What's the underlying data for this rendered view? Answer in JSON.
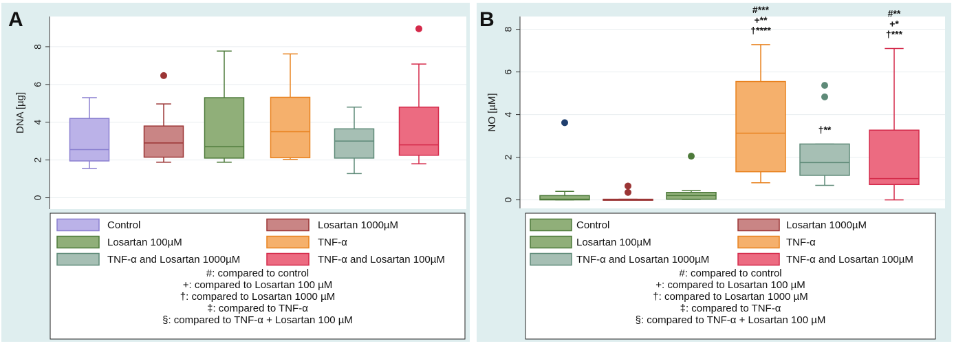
{
  "chart_data": [
    {
      "type": "box",
      "panel": "A",
      "ylabel": "DNA [µg]",
      "ylim": [
        -0.6,
        9.6
      ],
      "yticks": [
        0,
        2,
        4,
        6,
        8
      ],
      "grid": true,
      "legend_placement": "bottom",
      "legend": [
        "Control",
        "Losartan 1000µM",
        "Losartan 100µM",
        "TNF-α",
        "TNF-α and Losartan 1000µM",
        "TNF-α and Losartan 100µM"
      ],
      "notes": [
        "#: compared to control",
        "+: compared to Losartan 100 µM",
        "†: compared to Losartan 1000 µM",
        "‡: compared to TNF-α",
        "§: compared to TNF-α + Losartan 100 µM"
      ],
      "series": [
        {
          "name": "Control",
          "color": "#bbb2e8",
          "stroke": "#8a7fd0",
          "min": 1.55,
          "q1": 1.95,
          "median": 2.55,
          "q3": 4.2,
          "max": 5.3,
          "outliers": [],
          "annotation": []
        },
        {
          "name": "Losartan 1000µM",
          "color": "#c98585",
          "stroke": "#9b3535",
          "min": 1.88,
          "q1": 2.15,
          "median": 2.9,
          "q3": 3.8,
          "max": 4.97,
          "outliers": [
            6.47
          ],
          "annotation": []
        },
        {
          "name": "Losartan 100µM",
          "color": "#90af79",
          "stroke": "#4d7a3a",
          "min": 1.88,
          "q1": 2.1,
          "median": 2.7,
          "q3": 5.3,
          "max": 7.77,
          "outliers": [],
          "annotation": []
        },
        {
          "name": "TNF-α",
          "color": "#f5b06c",
          "stroke": "#e8821f",
          "min": 2.03,
          "q1": 2.12,
          "median": 3.5,
          "q3": 5.32,
          "max": 7.62,
          "outliers": [],
          "annotation": []
        },
        {
          "name": "TNF-α and Losartan 1000µM",
          "color": "#a6bfb4",
          "stroke": "#5e8a78",
          "min": 1.28,
          "q1": 2.1,
          "median": 3.0,
          "q3": 3.65,
          "max": 4.8,
          "outliers": [],
          "annotation": []
        },
        {
          "name": "TNF-α and Losartan 100µM",
          "color": "#ec6b81",
          "stroke": "#d42a4a",
          "min": 1.8,
          "q1": 2.25,
          "median": 2.8,
          "q3": 4.8,
          "max": 7.08,
          "outliers": [
            8.95
          ],
          "annotation": []
        }
      ]
    },
    {
      "type": "box",
      "panel": "B",
      "ylabel": "NO [µM]",
      "ylim": [
        -0.4,
        8.6
      ],
      "yticks": [
        0,
        2,
        4,
        6,
        8
      ],
      "grid": true,
      "legend_placement": "bottom",
      "legend": [
        "Control",
        "Losartan 1000µM",
        "Losartan 100µM",
        "TNF-α",
        "TNF-α and Losartan 1000µM",
        "TNF-α and Losartan 100µM"
      ],
      "notes": [
        "#: compared to control",
        "+: compared to Losartan 100 µM",
        "†: compared to Losartan 1000 µM",
        "‡: compared to TNF-α",
        "§: compared to TNF-α + Losartan 100 µM"
      ],
      "series": [
        {
          "name": "Control",
          "color": "#90af79",
          "stroke": "#4d7a3a",
          "min": 0.0,
          "q1": 0.0,
          "median": 0.03,
          "q3": 0.2,
          "max": 0.4,
          "outliers": [
            3.62
          ],
          "outlier_color": "#1f3f6e",
          "annotation": []
        },
        {
          "name": "Losartan 1000µM",
          "color": "#c98585",
          "stroke": "#9b3535",
          "min": 0.0,
          "q1": 0.0,
          "median": 0.0,
          "q3": 0.03,
          "max": 0.03,
          "outliers": [
            0.65,
            0.35
          ],
          "annotation": []
        },
        {
          "name": "Losartan 100µM",
          "color": "#90af79",
          "stroke": "#4d7a3a",
          "min": 0.02,
          "q1": 0.03,
          "median": 0.2,
          "q3": 0.35,
          "max": 0.43,
          "outliers": [
            2.05
          ],
          "annotation": []
        },
        {
          "name": "TNF-α",
          "color": "#f5b06c",
          "stroke": "#e8821f",
          "min": 0.8,
          "q1": 1.32,
          "median": 3.13,
          "q3": 5.55,
          "max": 7.28,
          "outliers": [],
          "annotation": [
            "#***",
            "+**",
            "†****"
          ]
        },
        {
          "name": "TNF-α and Losartan 1000µM",
          "color": "#a6bfb4",
          "stroke": "#5e8a78",
          "min": 0.68,
          "q1": 1.15,
          "median": 1.75,
          "q3": 2.62,
          "max": 2.62,
          "outliers": [
            5.37,
            4.83
          ],
          "annotation": [
            "†**"
          ]
        },
        {
          "name": "TNF-α and Losartan 100µM",
          "color": "#ec6b81",
          "stroke": "#d42a4a",
          "min": 0.0,
          "q1": 0.72,
          "median": 1.0,
          "q3": 3.27,
          "max": 7.1,
          "outliers": [],
          "annotation": [
            "#**",
            "+*",
            "†***"
          ]
        }
      ]
    }
  ]
}
